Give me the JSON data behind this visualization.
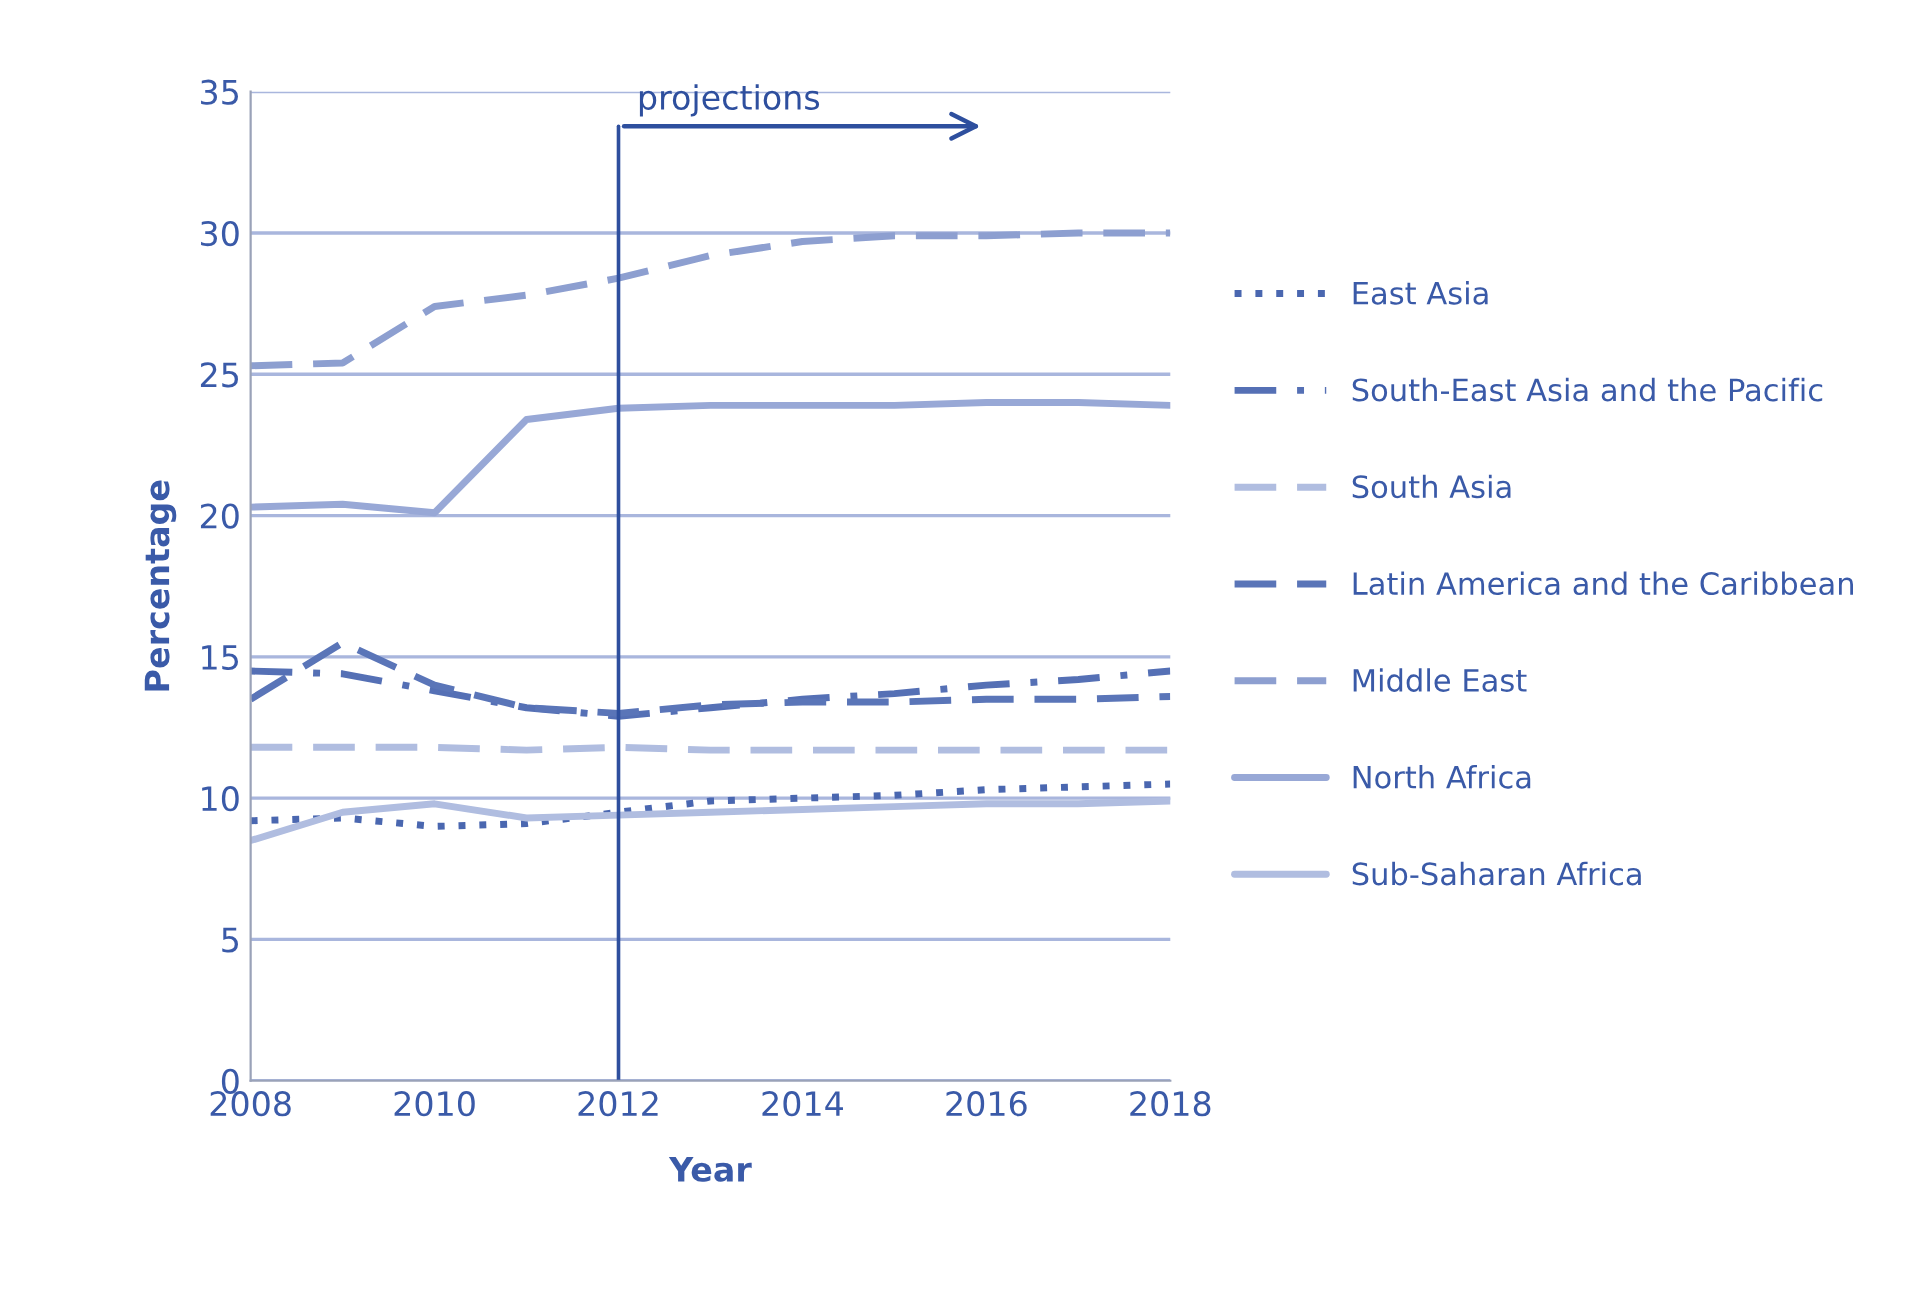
{
  "chart_data": {
    "type": "line",
    "xlabel": "Year",
    "ylabel": "Percentage",
    "x": [
      2008,
      2009,
      2010,
      2011,
      2012,
      2013,
      2014,
      2015,
      2016,
      2017,
      2018
    ],
    "xlim": [
      2008,
      2018
    ],
    "xticks": [
      2008,
      2010,
      2012,
      2014,
      2016,
      2018
    ],
    "ylim": [
      0,
      35
    ],
    "yticks": [
      0,
      5,
      10,
      15,
      20,
      25,
      30,
      35
    ],
    "grid": "y",
    "legend": "right",
    "ref_lines": [
      {
        "axis": "x",
        "value": 2012,
        "label": "projections",
        "color": "#2e4f9e"
      }
    ],
    "series": [
      {
        "name": "East Asia",
        "color": "#4a67b0",
        "line_style": "dotted",
        "values": [
          9.2,
          9.3,
          9.0,
          9.1,
          9.5,
          9.9,
          10.0,
          10.1,
          10.3,
          10.4,
          10.5
        ]
      },
      {
        "name": "South-East Asia and the Pacific",
        "color": "#5570b5",
        "line_style": "dashdot",
        "values": [
          14.5,
          14.4,
          13.8,
          13.2,
          12.9,
          13.2,
          13.5,
          13.7,
          14.0,
          14.2,
          14.5
        ]
      },
      {
        "name": "South Asia",
        "color": "#b0bde0",
        "line_style": "dashed",
        "values": [
          11.8,
          11.8,
          11.8,
          11.7,
          11.8,
          11.7,
          11.7,
          11.7,
          11.7,
          11.7,
          11.7
        ]
      },
      {
        "name": "Latin America and the Caribbean",
        "color": "#5a75b8",
        "line_style": "dashed",
        "values": [
          13.5,
          15.5,
          14.0,
          13.2,
          13.0,
          13.3,
          13.4,
          13.4,
          13.5,
          13.5,
          13.6
        ]
      },
      {
        "name": "Middle East",
        "color": "#8d9fd0",
        "line_style": "dashed",
        "values": [
          25.3,
          25.4,
          27.4,
          27.8,
          28.4,
          29.2,
          29.7,
          29.9,
          29.9,
          30.0,
          30.0
        ]
      },
      {
        "name": "North Africa",
        "color": "#98a8d6",
        "line_style": "solid",
        "values": [
          20.3,
          20.4,
          20.1,
          23.4,
          23.8,
          23.9,
          23.9,
          23.9,
          24.0,
          24.0,
          23.9
        ]
      },
      {
        "name": "Sub-Saharan Africa",
        "color": "#b0bde0",
        "line_style": "solid",
        "values": [
          8.5,
          9.5,
          9.8,
          9.3,
          9.4,
          9.5,
          9.6,
          9.7,
          9.8,
          9.8,
          9.9
        ]
      }
    ]
  }
}
